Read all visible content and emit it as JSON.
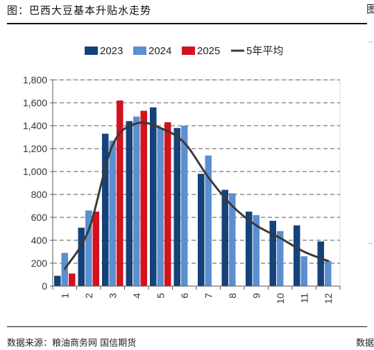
{
  "page": {
    "title": "图：巴西大豆基本升贴水走势",
    "source": "数据来源：粮油商务网  国信期货",
    "right_fragment": "图",
    "source_fragment": "数据"
  },
  "chart_data": {
    "type": "bar",
    "title": "",
    "xlabel": "",
    "ylabel": "",
    "ylim": [
      0,
      1800
    ],
    "yticks": [
      "0",
      "200",
      "400",
      "600",
      "800",
      "1,000",
      "1,200",
      "1,400",
      "1,600",
      "1,800"
    ],
    "ytick_values": [
      0,
      200,
      400,
      600,
      800,
      1000,
      1200,
      1400,
      1600,
      1800
    ],
    "categories": [
      "1",
      "2",
      "3",
      "4",
      "5",
      "6",
      "7",
      "8",
      "9",
      "10",
      "11",
      "12"
    ],
    "grid": true,
    "legend_position": "top",
    "series": [
      {
        "name": "2023",
        "kind": "bar",
        "color": "#14427a",
        "values": [
          90,
          510,
          1330,
          1440,
          1560,
          1380,
          980,
          840,
          650,
          570,
          530,
          390
        ]
      },
      {
        "name": "2024",
        "kind": "bar",
        "color": "#5b8fd1",
        "values": [
          290,
          660,
          1270,
          1480,
          1380,
          1400,
          1140,
          810,
          620,
          480,
          260,
          220
        ]
      },
      {
        "name": "2025",
        "kind": "bar",
        "color": "#d3121e",
        "values": [
          110,
          650,
          1620,
          1530,
          1430,
          null,
          null,
          null,
          null,
          null,
          null,
          null
        ]
      },
      {
        "name": "5年平均",
        "kind": "line",
        "color": "#3a3a3a",
        "values": [
          150,
          490,
          1230,
          1420,
          1380,
          1250,
          950,
          700,
          530,
          420,
          300,
          220
        ]
      }
    ]
  }
}
